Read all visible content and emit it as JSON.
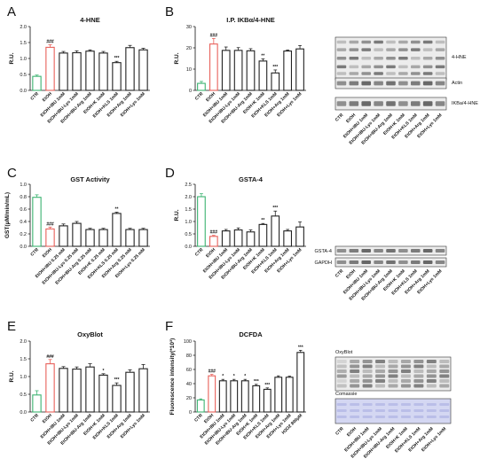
{
  "colors": {
    "ctr": "#3cb371",
    "etoh": "#e8605a",
    "other": "#222222",
    "bar_fill": "#ffffff"
  },
  "panel_letters": [
    "A",
    "B",
    "C",
    "D",
    "E",
    "F"
  ],
  "chart_data": [
    {
      "type": "bar",
      "letter": "A",
      "title": "4-HNE",
      "ylabel": "R.U.",
      "ylim": [
        0,
        2.0
      ],
      "yticks": [
        "0.0",
        "0.5",
        "1.0",
        "1.5",
        "2.0"
      ],
      "categories": [
        "CTR",
        "EtOH",
        "EtOH+IBU 1mM",
        "EtOH+IBU-Lys 1mM",
        "EtOH+IBU-Arg 1mM",
        "EtOH+K 1mM",
        "EtOH+KLS 1mM",
        "EtOH+Arg 1mM",
        "EtOH+Lys 1mM"
      ],
      "values": [
        0.44,
        1.35,
        1.17,
        1.18,
        1.23,
        1.17,
        0.87,
        1.34,
        1.27
      ],
      "errors": [
        0.04,
        0.08,
        0.05,
        0.06,
        0.04,
        0.05,
        0.04,
        0.07,
        0.05
      ],
      "significance": [
        "",
        "###",
        "",
        "",
        "",
        "",
        "***",
        "",
        ""
      ]
    },
    {
      "type": "bar",
      "letter": "B",
      "title": "I.P. IKBα/4-HNE",
      "ylabel": "R.U.",
      "ylim": [
        0,
        30
      ],
      "yticks": [
        "0",
        "10",
        "20",
        "30"
      ],
      "categories": [
        "CTR",
        "EtOH",
        "EtOH+IBU 1mM",
        "EtOH+IBU-Lys 1mM",
        "EtOH+IBU-Arg 1mM",
        "EtOH+K 1mM",
        "EtOH+KLS 1mM",
        "EtOH+Arg 1mM",
        "EtOH+Lys 1mM"
      ],
      "values": [
        3.3,
        21.8,
        18.8,
        18.8,
        18.6,
        13.8,
        8.2,
        18.5,
        19.5
      ],
      "errors": [
        0.9,
        2.6,
        1.6,
        1.3,
        1.0,
        1.0,
        1.4,
        0.5,
        1.6
      ],
      "significance": [
        "",
        "###",
        "",
        "",
        "",
        "**",
        "***",
        "",
        ""
      ]
    },
    {
      "type": "bar",
      "letter": "C",
      "title": "GST Activity",
      "ylabel": "GST(μM/min/mL)",
      "ylim": [
        0,
        1.0
      ],
      "yticks": [
        "0.0",
        "0.2",
        "0.4",
        "0.6",
        "0.8",
        "1.0"
      ],
      "categories": [
        "CTR",
        "EtOH",
        "EtOH+IBU 0.25 mM",
        "EtOH+IBU-Lys 0.25 mM",
        "EtOH+IBU-Arg 0.25 mM",
        "EtOH+K 0.25 mM",
        "EtOH+KLS 0.25 mM",
        "EtOH+Arg 0.25 mM",
        "EtOH+Lys 0.25 mM"
      ],
      "values": [
        0.79,
        0.28,
        0.33,
        0.37,
        0.27,
        0.27,
        0.53,
        0.27,
        0.27
      ],
      "errors": [
        0.04,
        0.03,
        0.03,
        0.03,
        0.02,
        0.02,
        0.02,
        0.02,
        0.02
      ],
      "significance": [
        "",
        "###",
        "",
        "",
        "",
        "",
        "**",
        "",
        ""
      ]
    },
    {
      "type": "bar",
      "letter": "D",
      "title": "GSTA-4",
      "ylabel": "R.U.",
      "ylim": [
        0,
        2.5
      ],
      "yticks": [
        "0.0",
        "0.5",
        "1.0",
        "1.5",
        "2.0",
        "2.5"
      ],
      "categories": [
        "CTR",
        "EtOH",
        "EtOH+IBU 1mM",
        "EtOH+IBU-Lys 1mM",
        "EtOH+IBU-Arg 1mM",
        "EtOH+K 1mM",
        "EtOH+KLS 1mM",
        "EtOH+Arg 1mM",
        "EtOH+Lys 1mM"
      ],
      "values": [
        2.0,
        0.4,
        0.62,
        0.66,
        0.58,
        0.88,
        1.22,
        0.62,
        0.78
      ],
      "errors": [
        0.12,
        0.04,
        0.06,
        0.08,
        0.08,
        0.04,
        0.2,
        0.06,
        0.2
      ],
      "significance": [
        "",
        "###",
        "",
        "",
        "",
        "**",
        "***",
        "",
        ""
      ]
    },
    {
      "type": "bar",
      "letter": "E",
      "title": "OxyBlot",
      "ylabel": "R.U.",
      "ylim": [
        0,
        2.0
      ],
      "yticks": [
        "0.0",
        "0.5",
        "1.0",
        "1.5",
        "2.0"
      ],
      "categories": [
        "CTR",
        "EtOH",
        "EtOH+IBU 1mM",
        "EtOH+IBU-Lys 1mM",
        "EtOH+IBU-Arg 1mM",
        "EtOH+K 1mM",
        "EtOH+KLS 1mM",
        "EtOH+Arg 1mM",
        "EtOH+Lys 1mM"
      ],
      "values": [
        0.48,
        1.36,
        1.23,
        1.21,
        1.27,
        1.04,
        0.75,
        1.12,
        1.22
      ],
      "errors": [
        0.12,
        0.12,
        0.05,
        0.06,
        0.09,
        0.04,
        0.07,
        0.07,
        0.12
      ],
      "significance": [
        "",
        "###",
        "",
        "",
        "",
        "*",
        "***",
        "",
        ""
      ]
    },
    {
      "type": "bar",
      "letter": "F",
      "title": "DCFDA",
      "ylabel": "Fluorescence intensity(*10³)",
      "ylim": [
        0,
        100
      ],
      "yticks": [
        "0",
        "20",
        "40",
        "60",
        "80",
        "100"
      ],
      "categories": [
        "CTR",
        "EtOH",
        "EtOH+IBU 1mM",
        "EtOH+IBU-Lys 1mM",
        "EtOH+IBU-Arg 1mM",
        "EtOH+K 1mM",
        "EtOH+KLS 1mM",
        "EtOH+Arg 1mM",
        "EtOH+Lys 1mM",
        "H2O2 800μM"
      ],
      "values": [
        17,
        51,
        44,
        44,
        44,
        37,
        32,
        49,
        49,
        84
      ],
      "errors": [
        1.5,
        2,
        2,
        2,
        2,
        2,
        2,
        2,
        1.5,
        3
      ],
      "significance": [
        "",
        "###",
        "*",
        "*",
        "*",
        "***",
        "***",
        "",
        "",
        "***"
      ]
    }
  ],
  "blots": [
    {
      "labels": [
        "4-HNE",
        "Actin",
        "IKBa/4-HNE"
      ],
      "lanes": [
        "CTR",
        "EtOH",
        "EtOH+IBU 1mM",
        "EtOH+IBU-Lys 1mM",
        "EtOH+IBU-Arg 1mM",
        "EtOH+K 1mM",
        "EtOH+KLS 1mM",
        "EtOH+Arg 1mM",
        "EtOH+Lys 1mM"
      ]
    },
    {
      "labels": [
        "GSTA-4",
        "GAPDH"
      ],
      "lanes": [
        "CTR",
        "EtOH",
        "EtOH+IBU 1mM",
        "EtOH+IBU-Lys 1mM",
        "EtOH+IBU-Arg 1mM",
        "EtOH+K 1mM",
        "EtOH+KLS 1mM",
        "EtOH+Arg 1mM",
        "EtOH+Lys 1mM"
      ]
    },
    {
      "labels": [
        "OxyBlot",
        "Comassie"
      ],
      "lanes": [
        "CTR",
        "EtOH",
        "EtOH+IBU 1mM",
        "EtOH+IBU-Lys 1mM",
        "EtOH+IBU-Arg 1mM",
        "EtOH+K 1mM",
        "EtOH+KLS 1mM",
        "EtOH+Arg 1mM",
        "EtOH+Lys 1mM"
      ]
    }
  ]
}
